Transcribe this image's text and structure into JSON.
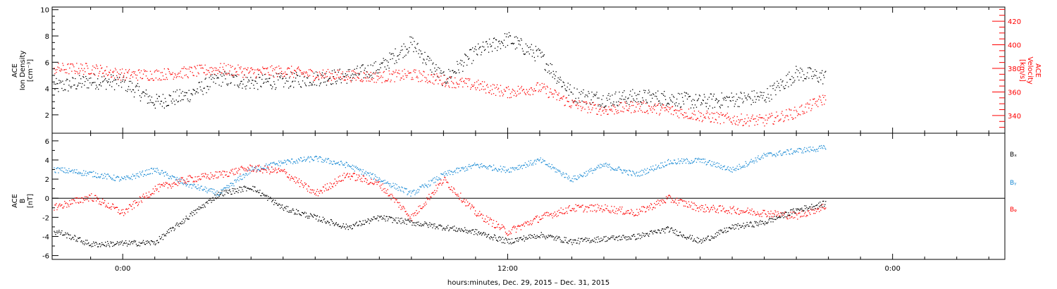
{
  "figure": {
    "xlabel": "hours:minutes, Dec. 29, 2015 – Dec. 31, 2015",
    "x_ticks": [
      "0:00",
      "12:00",
      "0:00"
    ]
  },
  "colors": {
    "black": "#000000",
    "red": "#ff0000",
    "blue": "#1a8ad4"
  },
  "chart_data": [
    {
      "type": "scatter",
      "title": "",
      "x_unit": "hours after 2015-12-29 00:00",
      "x_range": [
        -2.2,
        27.5
      ],
      "data_end_hour": 21.9,
      "ylabel_left": [
        "ACE",
        "Ion Density",
        "[cm⁻³]"
      ],
      "ylabel_right": [
        "ACE",
        "Velocity",
        "[km/s]"
      ],
      "ylim_left": [
        0.6,
        10.2
      ],
      "ylim_right": [
        325,
        432
      ],
      "yticks_left": [
        2,
        4,
        6,
        8,
        10
      ],
      "yticks_right": [
        340,
        360,
        380,
        400,
        420
      ],
      "series": [
        {
          "name": "",
          "axis": "left",
          "color": "black",
          "x": [
            -2,
            -1,
            0,
            1,
            2,
            3,
            4,
            5,
            6,
            7,
            8,
            9,
            10,
            11,
            12,
            13,
            14,
            15,
            16,
            17,
            18,
            19,
            20,
            21,
            21.9
          ],
          "y": [
            4.2,
            4.6,
            4.5,
            3.0,
            3.5,
            4.8,
            4.5,
            4.6,
            4.8,
            5.0,
            5.6,
            7.5,
            4.7,
            6.8,
            7.8,
            6.5,
            3.6,
            3.2,
            3.4,
            3.3,
            3.0,
            3.2,
            3.4,
            5.2,
            4.9
          ],
          "spread": 0.6
        },
        {
          "name": "",
          "axis": "right",
          "color": "red",
          "x": [
            -2,
            -1,
            0,
            1,
            2,
            3,
            4,
            5,
            6,
            7,
            8,
            9,
            10,
            11,
            12,
            13,
            14,
            15,
            16,
            17,
            18,
            19,
            20,
            21,
            21.9
          ],
          "y": [
            380,
            380,
            375,
            375,
            377,
            380,
            377,
            378,
            375,
            374,
            373,
            375,
            370,
            366,
            360,
            364,
            350,
            345,
            348,
            345,
            340,
            337,
            336,
            343,
            355
          ],
          "spread": 5
        }
      ]
    },
    {
      "type": "scatter",
      "title": "",
      "x_unit": "hours after 2015-12-29 00:00",
      "x_range": [
        -2.2,
        27.5
      ],
      "data_end_hour": 21.9,
      "ylabel": [
        "ACE",
        "B",
        "[nT]"
      ],
      "ylim": [
        -6.4,
        6.8
      ],
      "yticks": [
        -6,
        -4,
        -2,
        0,
        2,
        4,
        6
      ],
      "zero_line": true,
      "legend_position": "right",
      "series": [
        {
          "name": "Bₓ",
          "color": "black",
          "x": [
            -2,
            -1,
            0,
            1,
            2,
            3,
            4,
            5,
            6,
            7,
            8,
            9,
            10,
            11,
            12,
            13,
            14,
            15,
            16,
            17,
            18,
            19,
            20,
            21,
            21.9
          ],
          "y": [
            -3.5,
            -4.8,
            -4.7,
            -4.6,
            -2.0,
            0.5,
            1.2,
            -1.0,
            -2.0,
            -3.0,
            -2.0,
            -2.5,
            -3.0,
            -3.5,
            -4.5,
            -3.8,
            -4.5,
            -4.2,
            -4.0,
            -3.2,
            -4.5,
            -3.0,
            -2.5,
            -1.2,
            -0.5
          ],
          "spread": 0.3
        },
        {
          "name": "Bᵧ",
          "color": "blue",
          "x": [
            -2,
            -1,
            0,
            1,
            2,
            3,
            4,
            5,
            6,
            7,
            8,
            9,
            10,
            11,
            12,
            13,
            14,
            15,
            16,
            17,
            18,
            19,
            20,
            21,
            21.9
          ],
          "y": [
            3.0,
            2.6,
            2.0,
            3.0,
            1.5,
            0.5,
            3.0,
            3.8,
            4.2,
            3.5,
            2.0,
            0.5,
            2.5,
            3.5,
            3.0,
            4.0,
            2.0,
            3.5,
            2.5,
            3.8,
            4.0,
            3.0,
            4.5,
            5.0,
            5.3
          ],
          "spread": 0.3
        },
        {
          "name": "Bᵩ",
          "color": "red",
          "x": [
            -2,
            -1,
            0,
            1,
            2,
            3,
            4,
            5,
            6,
            7,
            8,
            9,
            10,
            11,
            12,
            13,
            14,
            15,
            16,
            17,
            18,
            19,
            20,
            21,
            21.9
          ],
          "y": [
            -0.8,
            0.2,
            -1.5,
            1.0,
            2.0,
            2.5,
            3.2,
            2.8,
            0.5,
            2.5,
            1.5,
            -2.0,
            2.0,
            -1.5,
            -3.5,
            -2.0,
            -1.0,
            -1.0,
            -1.5,
            0.0,
            -1.0,
            -1.2,
            -1.5,
            -1.8,
            -0.8
          ],
          "spread": 0.4
        }
      ]
    }
  ]
}
